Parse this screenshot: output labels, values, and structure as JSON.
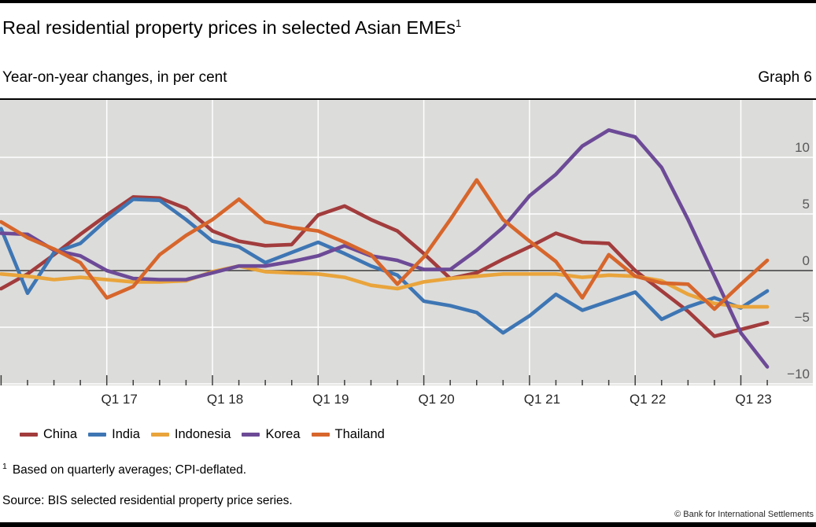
{
  "header": {
    "title": "Real residential property prices in selected Asian EMEs",
    "title_footnote_marker": "1",
    "subtitle": "Year-on-year changes, in per cent",
    "graph_label": "Graph 6"
  },
  "chart_data": {
    "type": "line",
    "title": "Real residential property prices in selected Asian EMEs",
    "subtitle": "Year-on-year changes, in per cent",
    "ylabel": "Year-on-year changes, per cent",
    "ylim": [
      -10,
      15
    ],
    "grid": "white gridlines on grey plot background, dark zero line",
    "legend_position": "bottom-left",
    "categories": [
      "Q1 16",
      "Q2 16",
      "Q3 16",
      "Q4 16",
      "Q1 17",
      "Q2 17",
      "Q3 17",
      "Q4 17",
      "Q1 18",
      "Q2 18",
      "Q3 18",
      "Q4 18",
      "Q1 19",
      "Q2 19",
      "Q3 19",
      "Q4 19",
      "Q1 20",
      "Q2 20",
      "Q3 20",
      "Q4 20",
      "Q1 21",
      "Q2 21",
      "Q3 21",
      "Q4 21",
      "Q1 22",
      "Q2 22",
      "Q3 22",
      "Q4 22",
      "Q1 23",
      "Q2 23"
    ],
    "x_tick_labels": [
      "Q1 17",
      "Q1 18",
      "Q1 19",
      "Q1 20",
      "Q1 21",
      "Q1 22",
      "Q1 23"
    ],
    "x_year_ticks": [
      4,
      8,
      12,
      16,
      20,
      24,
      28
    ],
    "yticks": [
      {
        "v": 10,
        "label": "10"
      },
      {
        "v": 5,
        "label": "5"
      },
      {
        "v": 0,
        "label": "0"
      },
      {
        "v": -5,
        "label": "−5"
      },
      {
        "v": -10,
        "label": "−10"
      }
    ],
    "series": [
      {
        "name": "China",
        "color": "#a23c3d",
        "values": [
          -1.6,
          -0.3,
          1.4,
          3.2,
          4.9,
          6.5,
          6.4,
          5.5,
          3.5,
          2.6,
          2.2,
          2.3,
          4.9,
          5.7,
          4.5,
          3.5,
          1.5,
          -0.7,
          -0.2,
          1.0,
          2.1,
          3.3,
          2.5,
          2.4,
          0.0,
          -1.8,
          -3.6,
          -5.8,
          -5.2,
          -4.6
        ]
      },
      {
        "name": "India",
        "color": "#3e76b4",
        "values": [
          3.7,
          -2.0,
          1.6,
          2.4,
          4.5,
          6.3,
          6.2,
          4.5,
          2.6,
          2.1,
          0.7,
          1.6,
          2.5,
          1.5,
          0.4,
          -0.4,
          -2.7,
          -3.1,
          -3.7,
          -5.5,
          -4.0,
          -2.1,
          -3.5,
          -2.7,
          -1.9,
          -4.3,
          -3.2,
          -2.4,
          -3.3,
          -1.8
        ]
      },
      {
        "name": "Indonesia",
        "color": "#e9a43b",
        "values": [
          -0.3,
          -0.5,
          -0.8,
          -0.6,
          -0.8,
          -1.0,
          -1.0,
          -0.9,
          -0.1,
          0.4,
          -0.1,
          -0.2,
          -0.3,
          -0.6,
          -1.3,
          -1.6,
          -1.0,
          -0.7,
          -0.5,
          -0.3,
          -0.3,
          -0.3,
          -0.6,
          -0.4,
          -0.5,
          -0.9,
          -2.1,
          -2.9,
          -3.2,
          -3.2
        ]
      },
      {
        "name": "Korea",
        "color": "#6d4a97",
        "values": [
          3.3,
          3.2,
          1.8,
          1.3,
          0.0,
          -0.7,
          -0.8,
          -0.8,
          -0.2,
          0.4,
          0.4,
          0.8,
          1.3,
          2.2,
          1.3,
          0.9,
          0.1,
          0.1,
          1.8,
          3.8,
          6.6,
          8.5,
          11.0,
          12.4,
          11.8,
          9.1,
          4.5,
          -0.5,
          -5.5,
          -8.5
        ]
      },
      {
        "name": "Thailand",
        "color": "#d7662c",
        "values": [
          4.3,
          2.9,
          1.9,
          0.7,
          -2.4,
          -1.4,
          1.4,
          3.1,
          4.5,
          6.3,
          4.3,
          3.8,
          3.5,
          2.5,
          1.4,
          -1.2,
          1.2,
          4.5,
          8.0,
          4.5,
          2.6,
          0.8,
          -2.4,
          1.4,
          -0.5,
          -1.1,
          -1.2,
          -3.4,
          -1.2,
          0.9
        ]
      }
    ],
    "colors": {
      "plot_bg": "#dcdcda",
      "grid": "#ffffff",
      "zero_line": "#3c3c3c",
      "axis_label": "#58585a",
      "x_label": "#262626"
    }
  },
  "footnote": {
    "marker": "1",
    "text": "Based on quarterly averages; CPI-deflated."
  },
  "source": "Source: BIS selected residential property price series.",
  "copyright": "© Bank for International Settlements"
}
